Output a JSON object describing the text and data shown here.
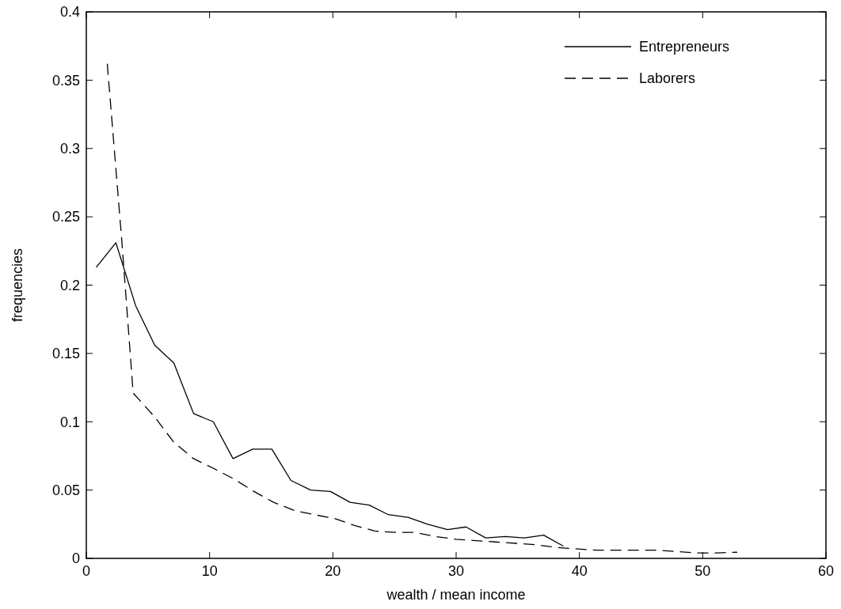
{
  "chart_data": {
    "type": "line",
    "xlabel": "wealth / mean income",
    "ylabel": "frequencies",
    "xlim": [
      0,
      60
    ],
    "ylim": [
      0,
      0.4
    ],
    "xticks": [
      0,
      10,
      20,
      30,
      40,
      50,
      60
    ],
    "yticks": [
      0,
      0.05,
      0.1,
      0.15,
      0.2,
      0.25,
      0.3,
      0.35,
      0.4
    ],
    "grid": false,
    "legend": "top right",
    "marker": "none",
    "series": [
      {
        "name": "Entrepreneurs",
        "color": "#000000",
        "line_style": "solid",
        "x": [
          0.8,
          2.4,
          4.0,
          5.55,
          7.1,
          8.7,
          10.3,
          11.9,
          13.5,
          15.05,
          16.6,
          18.2,
          19.8,
          21.4,
          22.95,
          24.5,
          26.1,
          27.7,
          29.3,
          30.8,
          32.4,
          34.0,
          35.55,
          37.1,
          38.7
        ],
        "values": [
          0.213,
          0.231,
          0.185,
          0.156,
          0.143,
          0.106,
          0.1,
          0.073,
          0.08,
          0.08,
          0.057,
          0.05,
          0.049,
          0.041,
          0.039,
          0.032,
          0.03,
          0.025,
          0.021,
          0.023,
          0.015,
          0.016,
          0.015,
          0.017,
          0.009
        ]
      },
      {
        "name": "Laborers",
        "color": "#000000",
        "line_style": "dashed",
        "x": [
          1.7,
          2.9,
          3.8,
          5.5,
          7.1,
          8.7,
          10.3,
          12,
          13.6,
          15.2,
          16.9,
          18.5,
          20.2,
          21.8,
          23.4,
          25.1,
          26.7,
          28.3,
          30,
          31.6,
          33.2,
          34.9,
          36.5,
          38.1,
          39.7,
          41.4,
          43,
          44.6,
          46.3,
          47.9,
          49.5,
          51.2,
          52.8
        ],
        "values": [
          0.362,
          0.23,
          0.121,
          0.104,
          0.085,
          0.073,
          0.066,
          0.058,
          0.049,
          0.041,
          0.035,
          0.032,
          0.029,
          0.024,
          0.02,
          0.019,
          0.019,
          0.016,
          0.014,
          0.013,
          0.012,
          0.011,
          0.01,
          0.008,
          0.007,
          0.006,
          0.006,
          0.006,
          0.006,
          0.005,
          0.004,
          0.004,
          0.0045
        ]
      }
    ]
  }
}
